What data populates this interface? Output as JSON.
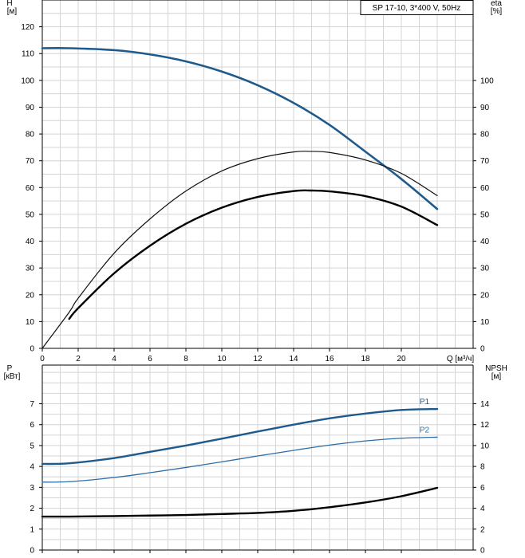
{
  "chart_data": [
    {
      "type": "line",
      "title": "SP 17-10, 3*400 V, 50Hz",
      "xlabel": "Q [м³/ч]",
      "xlim": [
        0,
        22
      ],
      "x_ticks": [
        0,
        2,
        4,
        6,
        8,
        10,
        12,
        14,
        16,
        18,
        20
      ],
      "left_axis": {
        "label_line1": "H",
        "label_line2": "[м]",
        "ylim": [
          0,
          130
        ],
        "ticks": [
          0,
          10,
          20,
          30,
          40,
          50,
          60,
          70,
          80,
          90,
          100,
          110,
          120
        ]
      },
      "right_axis": {
        "label_line1": "eta",
        "label_line2": "[%]",
        "ylim": [
          0,
          130
        ],
        "ticks": [
          0,
          10,
          20,
          30,
          40,
          50,
          60,
          70,
          80,
          90,
          100
        ]
      },
      "grid": true,
      "series": [
        {
          "axis": "left",
          "color": "#1f5a8c",
          "width": 2.6,
          "x": [
            0,
            1.5,
            4,
            6,
            8,
            10,
            12,
            14,
            16,
            18,
            20,
            22
          ],
          "y": [
            112,
            112,
            111.3,
            109.7,
            107.1,
            103.3,
            98.2,
            91.6,
            83.4,
            73.4,
            63.2,
            52
          ]
        },
        {
          "axis": "right",
          "color": "#111111",
          "width": 1.2,
          "x": [
            0,
            1.5,
            2,
            4,
            6,
            8,
            10,
            12,
            14,
            15,
            16,
            18,
            20,
            22
          ],
          "y": [
            0,
            13.5,
            18.7,
            35.5,
            48.3,
            58.7,
            66.2,
            70.8,
            73.3,
            73.5,
            73.1,
            70.3,
            65.3,
            57
          ]
        },
        {
          "axis": "right",
          "color": "#000000",
          "width": 2.4,
          "x": [
            1.5,
            2,
            4,
            6,
            8,
            10,
            12,
            14,
            15,
            16,
            18,
            20,
            22
          ],
          "y": [
            11,
            15,
            28,
            38.3,
            46.5,
            52.5,
            56.5,
            58.7,
            58.9,
            58.6,
            56.8,
            52.9,
            46
          ]
        }
      ]
    },
    {
      "type": "line",
      "xlim": [
        0,
        22
      ],
      "x_ticks": [
        0,
        2,
        4,
        6,
        8,
        10,
        12,
        14,
        16,
        18,
        20
      ],
      "left_axis": {
        "label_line1": "P",
        "label_line2": "[кВт]",
        "ylim": [
          0,
          8
        ],
        "ticks": [
          0,
          1,
          2,
          3,
          4,
          5,
          6,
          7
        ]
      },
      "right_axis": {
        "label_line1": "NPSH",
        "label_line2": "[м]",
        "ylim": [
          0,
          16
        ],
        "ticks": [
          0,
          2,
          4,
          6,
          8,
          10,
          12,
          14
        ]
      },
      "grid": true,
      "series": [
        {
          "name": "P1",
          "axis": "left",
          "color": "#1f5a8c",
          "width": 2.4,
          "x": [
            0,
            1.5,
            4,
            6,
            8,
            10,
            12,
            14,
            16,
            18,
            20,
            22
          ],
          "y": [
            4.12,
            4.15,
            4.4,
            4.7,
            5.0,
            5.33,
            5.67,
            6.0,
            6.3,
            6.53,
            6.7,
            6.75
          ]
        },
        {
          "name": "P2",
          "axis": "left",
          "color": "#2d6da6",
          "width": 1.3,
          "x": [
            0,
            1.5,
            4,
            6,
            8,
            10,
            12,
            14,
            16,
            18,
            20,
            22
          ],
          "y": [
            3.25,
            3.27,
            3.47,
            3.7,
            3.95,
            4.22,
            4.5,
            4.77,
            5.02,
            5.22,
            5.35,
            5.4
          ]
        },
        {
          "axis": "right",
          "color": "#000000",
          "width": 2.4,
          "x": [
            0,
            1.5,
            4,
            6,
            8,
            10,
            12,
            14,
            16,
            18,
            20,
            22
          ],
          "y": [
            3.2,
            3.2,
            3.25,
            3.3,
            3.35,
            3.45,
            3.55,
            3.75,
            4.1,
            4.55,
            5.15,
            5.95
          ]
        }
      ]
    }
  ]
}
